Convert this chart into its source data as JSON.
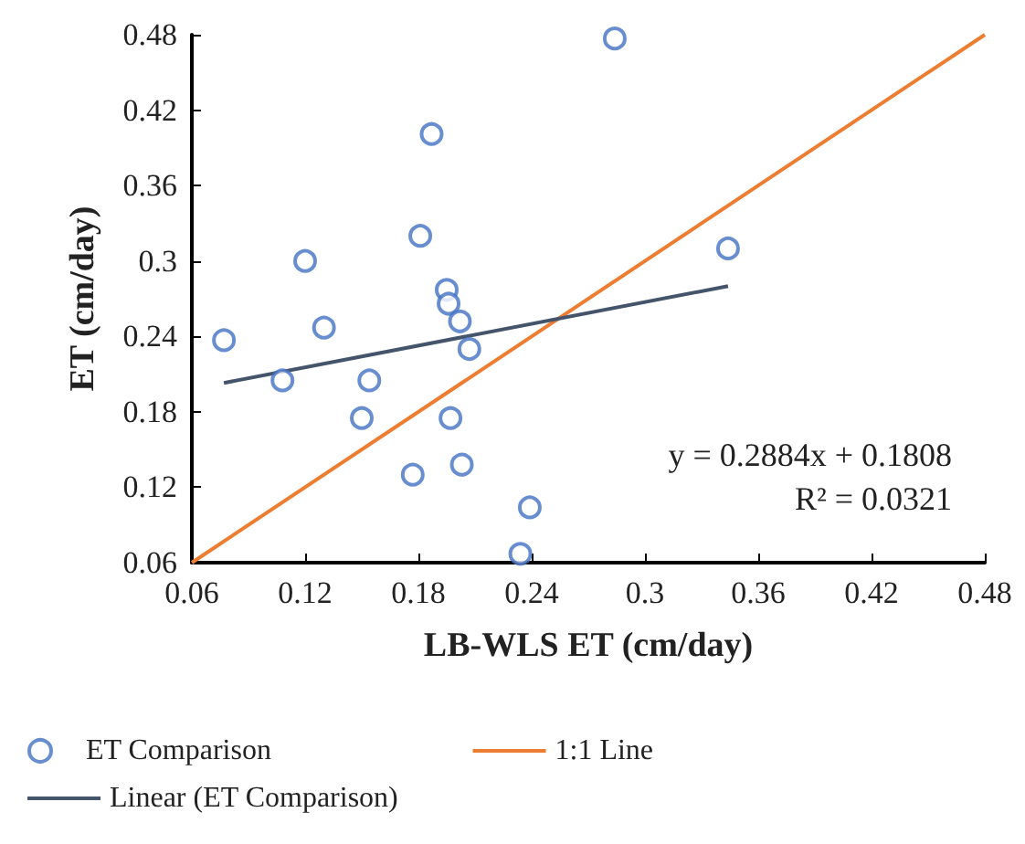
{
  "chart_data": {
    "type": "scatter",
    "xlabel": "LB-WLS ET (cm/day)",
    "ylabel": "ET (cm/day)",
    "xlim": [
      0.06,
      0.48
    ],
    "xticks": [
      0.06,
      0.12,
      0.18,
      0.24,
      0.3,
      0.36,
      0.42,
      0.48
    ],
    "ylim": [
      0.06,
      0.48
    ],
    "yticks": [
      0.06,
      0.12,
      0.18,
      0.24,
      0.3,
      0.36,
      0.42,
      0.48
    ],
    "grid": false,
    "legend": "bottom",
    "annotations": [
      "y = 0.2884x + 0.1808",
      "R² = 0.0321"
    ],
    "series": [
      {
        "name": "ET Comparison",
        "marker": "circle",
        "color": "#4472c4",
        "x": [
          0.077,
          0.108,
          0.12,
          0.13,
          0.15,
          0.154,
          0.181,
          0.187,
          0.195,
          0.196,
          0.202,
          0.207,
          0.197,
          0.177,
          0.203,
          0.239,
          0.234,
          0.284,
          0.344
        ],
        "values": [
          0.237,
          0.205,
          0.3,
          0.247,
          0.175,
          0.205,
          0.32,
          0.401,
          0.277,
          0.266,
          0.252,
          0.23,
          0.175,
          0.13,
          0.138,
          0.104,
          0.067,
          0.477,
          0.31
        ]
      },
      {
        "name": "1:1 Line",
        "type": "line",
        "marker": "none",
        "color": "#ed7d31",
        "x": [
          0.06,
          0.48
        ],
        "values": [
          0.06,
          0.48
        ]
      },
      {
        "name": "Linear (ET Comparison)",
        "type": "line",
        "marker": "none",
        "color": "#44546a",
        "x": [
          0.077,
          0.344
        ],
        "values": [
          0.203,
          0.28
        ]
      }
    ]
  }
}
